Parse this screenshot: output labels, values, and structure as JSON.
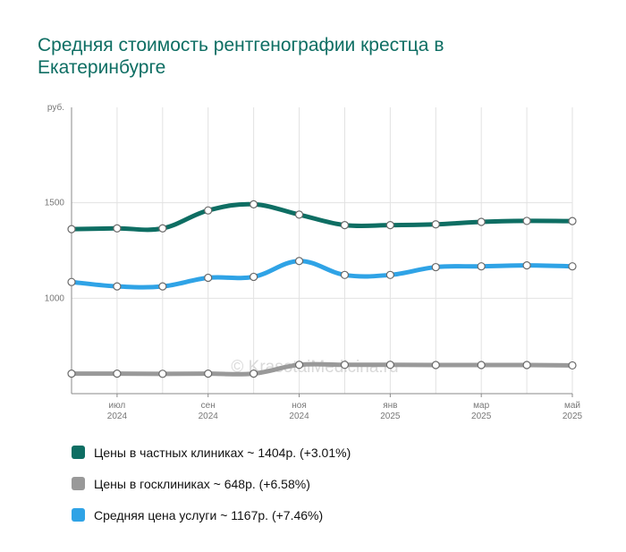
{
  "title": "Средняя стоимость рентгенографии крестца в Екатеринбурге",
  "watermark": "© KrasotaiMedicina.ru",
  "legend": [
    {
      "label": "Цены в частных клиниках ~ 1404р. (+3.01%)",
      "color": "#0e6e63"
    },
    {
      "label": "Цены в госклиниках ~ 648р. (+6.58%)",
      "color": "#999999"
    },
    {
      "label": "Средняя цена услуги ~ 1167р. (+7.46%)",
      "color": "#2fa3e6"
    }
  ],
  "chart_data": {
    "type": "line",
    "title": "Средняя стоимость рентгенографии крестца в Екатеринбурге",
    "ylabel": "руб.",
    "ylim": [
      500,
      2000
    ],
    "yticks": [
      {
        "value": 1000,
        "label": "1000"
      },
      {
        "value": 1500,
        "label": "1500"
      }
    ],
    "yunit_label": "руб.",
    "xticks": [
      {
        "index": 1,
        "month": "июл",
        "year": "2024"
      },
      {
        "index": 3,
        "month": "сен",
        "year": "2024"
      },
      {
        "index": 5,
        "month": "ноя",
        "year": "2024"
      },
      {
        "index": 7,
        "month": "янв",
        "year": "2025"
      },
      {
        "index": 9,
        "month": "мар",
        "year": "2025"
      },
      {
        "index": 11,
        "month": "май",
        "year": "2025"
      }
    ],
    "x": [
      "2024-06",
      "2024-07",
      "2024-08",
      "2024-09",
      "2024-10",
      "2024-11",
      "2024-12",
      "2025-01",
      "2025-02",
      "2025-03",
      "2025-04",
      "2025-05"
    ],
    "series": [
      {
        "name": "Цены в частных клиниках",
        "color": "#0e6e63",
        "values": [
          1362,
          1366,
          1366,
          1460,
          1492,
          1438,
          1383,
          1383,
          1387,
          1400,
          1405,
          1404
        ]
      },
      {
        "name": "Цены в госклиниках",
        "color": "#999999",
        "values": [
          605,
          605,
          604,
          605,
          605,
          651,
          651,
          651,
          650,
          650,
          650,
          648
        ]
      },
      {
        "name": "Средняя цена услуги",
        "color": "#2fa3e6",
        "values": [
          1085,
          1062,
          1062,
          1107,
          1112,
          1195,
          1122,
          1122,
          1163,
          1167,
          1172,
          1167
        ]
      }
    ],
    "grid": true
  }
}
